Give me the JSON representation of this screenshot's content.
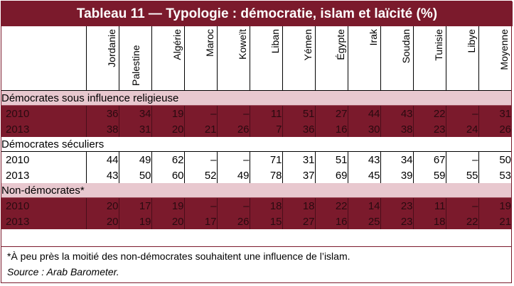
{
  "title": "Tableau 11 — Typologie : démocratie, islam et laïcité (%)",
  "columns": [
    "Jordanie",
    "Palestine",
    "Algérie",
    "Maroc",
    "Koweït",
    "Liban",
    "Yémen",
    "Égypte",
    "Irak",
    "Soudan",
    "Tunisie",
    "Libye",
    "Moyenne"
  ],
  "sections": [
    {
      "label": "Démocrates sous influence religieuse",
      "rows": [
        {
          "year": "2010",
          "values": [
            "36",
            "34",
            "19",
            "–",
            "–",
            "11",
            "51",
            "27",
            "44",
            "43",
            "22",
            "–",
            "31"
          ]
        },
        {
          "year": "2013",
          "values": [
            "38",
            "31",
            "20",
            "21",
            "26",
            "7",
            "36",
            "16",
            "30",
            "38",
            "23",
            "24",
            "26"
          ]
        }
      ]
    },
    {
      "label": "Démocrates séculiers",
      "rows": [
        {
          "year": "2010",
          "values": [
            "44",
            "49",
            "62",
            "–",
            "–",
            "71",
            "31",
            "51",
            "43",
            "34",
            "67",
            "–",
            "50"
          ]
        },
        {
          "year": "2013",
          "values": [
            "43",
            "50",
            "60",
            "52",
            "49",
            "78",
            "37",
            "69",
            "45",
            "39",
            "59",
            "55",
            "53"
          ]
        }
      ]
    },
    {
      "label": "Non-démocrates*",
      "rows": [
        {
          "year": "2010",
          "values": [
            "20",
            "17",
            "19",
            "–",
            "–",
            "18",
            "18",
            "22",
            "14",
            "23",
            "11",
            "–",
            "19"
          ]
        },
        {
          "year": "2013",
          "values": [
            "20",
            "19",
            "20",
            "17",
            "26",
            "15",
            "27",
            "16",
            "25",
            "23",
            "18",
            "22",
            "21"
          ]
        }
      ]
    }
  ],
  "footnote": "*À peu près la moitié des non-démocrates souhaitent une influence de l’islam.",
  "source": "Source : Arab Barometer.",
  "colors": {
    "accent": "#7b1a2c",
    "section_pink": "#e8c8cf"
  }
}
